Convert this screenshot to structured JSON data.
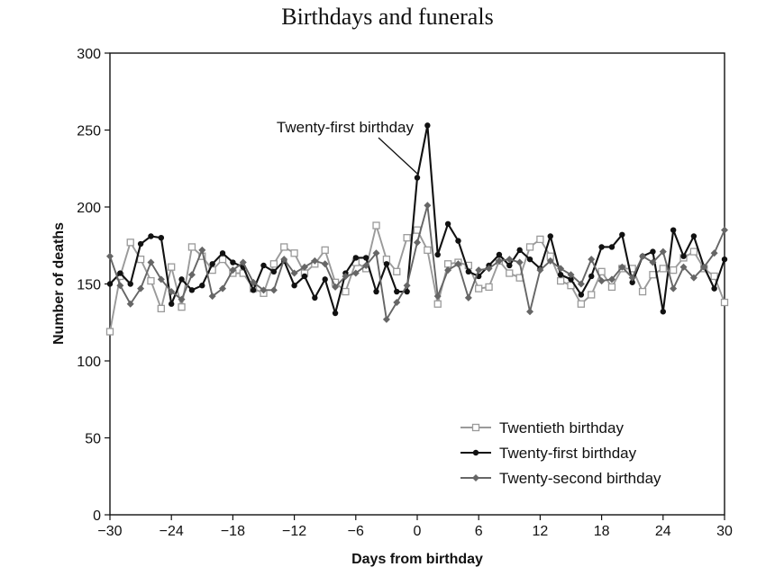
{
  "chart_data": {
    "type": "line",
    "title": "Birthdays and funerals",
    "xlabel": "Days from birthday",
    "ylabel": "Number of deaths",
    "xlim": [
      -30,
      30
    ],
    "ylim": [
      0,
      300
    ],
    "x_ticks": [
      -30,
      -24,
      -18,
      -12,
      -6,
      0,
      6,
      12,
      18,
      24,
      30
    ],
    "x_tick_labels": [
      "−30",
      "−24",
      "−18",
      "−12",
      "−6",
      "0",
      "6",
      "12",
      "18",
      "24",
      "30"
    ],
    "y_ticks": [
      0,
      50,
      100,
      150,
      200,
      250,
      300
    ],
    "y_tick_labels": [
      "0",
      "50",
      "100",
      "150",
      "200",
      "250",
      "300"
    ],
    "grid": false,
    "legend_position": "bottom-right",
    "x": [
      -30,
      -29,
      -28,
      -27,
      -26,
      -25,
      -24,
      -23,
      -22,
      -21,
      -20,
      -19,
      -18,
      -17,
      -16,
      -15,
      -14,
      -13,
      -12,
      -11,
      -10,
      -9,
      -8,
      -7,
      -6,
      -5,
      -4,
      -3,
      -2,
      -1,
      0,
      1,
      2,
      3,
      4,
      5,
      6,
      7,
      8,
      9,
      10,
      11,
      12,
      13,
      14,
      15,
      16,
      17,
      18,
      19,
      20,
      21,
      22,
      23,
      24,
      25,
      26,
      27,
      28,
      29,
      30
    ],
    "series": [
      {
        "name": "Twentieth birthday",
        "color": "#9a9a9a",
        "marker": "open-square",
        "values": [
          119,
          155,
          177,
          166,
          152,
          134,
          161,
          135,
          174,
          168,
          159,
          166,
          157,
          157,
          147,
          144,
          163,
          174,
          170,
          157,
          163,
          172,
          151,
          145,
          164,
          160,
          188,
          166,
          158,
          180,
          185,
          172,
          137,
          163,
          164,
          162,
          147,
          148,
          165,
          157,
          154,
          174,
          179,
          168,
          152,
          149,
          137,
          143,
          158,
          148,
          160,
          160,
          145,
          156,
          160,
          159,
          167,
          171,
          160,
          155,
          138
        ]
      },
      {
        "name": "Twenty-first birthday",
        "color": "#111111",
        "marker": "filled-circle",
        "values": [
          150,
          157,
          150,
          176,
          181,
          180,
          137,
          153,
          146,
          149,
          163,
          170,
          164,
          161,
          146,
          162,
          158,
          165,
          149,
          155,
          141,
          153,
          131,
          157,
          167,
          167,
          145,
          163,
          145,
          145,
          219,
          253,
          169,
          189,
          178,
          158,
          155,
          162,
          169,
          162,
          172,
          166,
          160,
          181,
          156,
          153,
          143,
          155,
          174,
          174,
          182,
          151,
          168,
          171,
          132,
          185,
          168,
          181,
          161,
          147,
          166
        ]
      },
      {
        "name": "Twenty-second birthday",
        "color": "#666666",
        "marker": "filled-diamond",
        "values": [
          168,
          149,
          137,
          147,
          164,
          153,
          145,
          140,
          156,
          172,
          142,
          147,
          159,
          164,
          151,
          146,
          146,
          166,
          157,
          161,
          165,
          163,
          148,
          155,
          157,
          162,
          170,
          127,
          138,
          149,
          177,
          201,
          142,
          159,
          163,
          141,
          159,
          160,
          165,
          166,
          164,
          132,
          159,
          165,
          160,
          156,
          150,
          166,
          152,
          153,
          161,
          154,
          168,
          164,
          171,
          147,
          161,
          154,
          161,
          170,
          185
        ]
      }
    ],
    "annotation": {
      "text": "Twenty-first birthday",
      "x": 1,
      "y": 253
    }
  }
}
